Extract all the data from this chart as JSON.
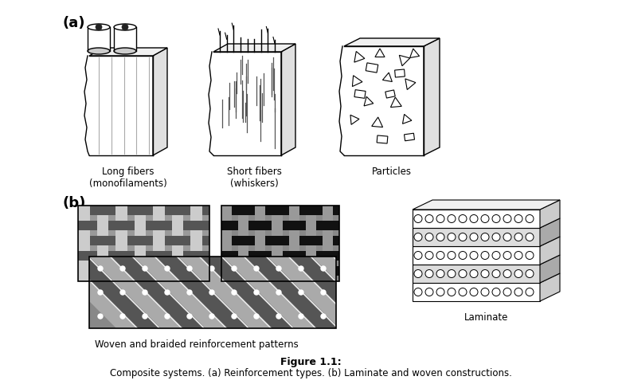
{
  "title": "Figure 1.1:",
  "subtitle": "Composite systems. (a) Reinforcement types. (b) Laminate and woven constructions.",
  "label_a": "(a)",
  "label_b": "(b)",
  "label_long_fibers": "Long fibers\n(monofilaments)",
  "label_short_fibers": "Short fibers\n(whiskers)",
  "label_particles": "Particles",
  "label_woven": "Woven and braided reinforcement patterns",
  "label_laminate": "Laminate",
  "bg_color": "#ffffff",
  "text_color": "#000000",
  "fig_w": 7.81,
  "fig_h": 4.92,
  "dpi": 100
}
